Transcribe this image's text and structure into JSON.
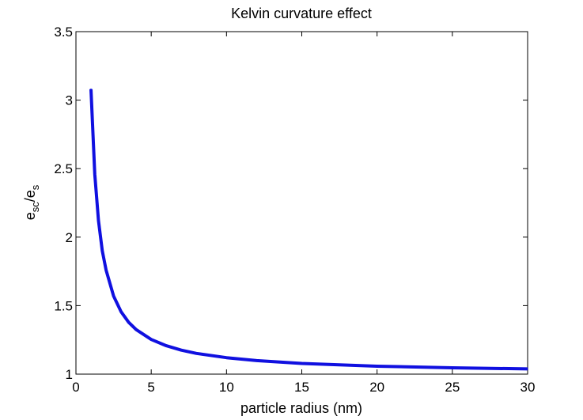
{
  "chart_data": {
    "type": "line",
    "title": "Kelvin curvature effect",
    "xlabel": "particle radius (nm)",
    "ylabel": {
      "base1": "e",
      "sub1": "sc",
      "sep": "/",
      "base2": "e",
      "sub2": "s"
    },
    "xlim": [
      0,
      30
    ],
    "ylim": [
      1,
      3.5
    ],
    "xticks": [
      0,
      5,
      10,
      15,
      20,
      25,
      30
    ],
    "yticks": [
      1,
      1.5,
      2,
      2.5,
      3,
      3.5
    ],
    "xtick_labels": [
      "0",
      "5",
      "10",
      "15",
      "20",
      "25",
      "30"
    ],
    "ytick_labels": [
      "1",
      "1.5",
      "2",
      "2.5",
      "3",
      "3.5"
    ],
    "grid": false,
    "legend": "none",
    "line_color": "#1010e0",
    "series": [
      {
        "x": [
          1,
          1.25,
          1.5,
          1.75,
          2,
          2.5,
          3,
          3.5,
          4,
          5,
          6,
          7,
          8,
          10,
          12,
          15,
          20,
          25,
          30
        ],
        "y": [
          3.08,
          2.46,
          2.12,
          1.9,
          1.76,
          1.57,
          1.455,
          1.379,
          1.325,
          1.253,
          1.207,
          1.175,
          1.151,
          1.12,
          1.099,
          1.078,
          1.058,
          1.046,
          1.038
        ]
      }
    ]
  }
}
